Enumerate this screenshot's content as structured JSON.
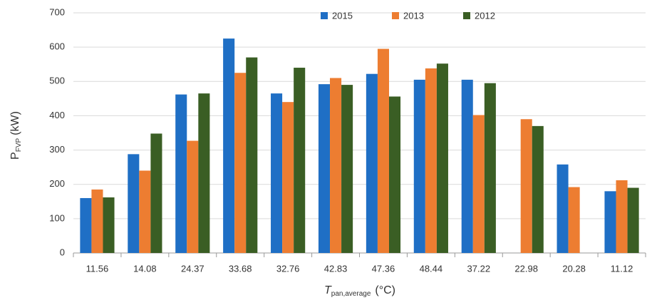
{
  "chart_data": {
    "type": "bar",
    "y_label": "P",
    "y_label_sub": "FVP",
    "y_label_unit": "(kW)",
    "x_label": "T",
    "x_label_sub": "pan,average",
    "x_label_unit": "(°C)",
    "categories": [
      "11.56",
      "14.08",
      "24.37",
      "33.68",
      "32.76",
      "42.83",
      "47.36",
      "48.44",
      "37.22",
      "22.98",
      "20.28",
      "11.12"
    ],
    "series": [
      {
        "name": "2015",
        "color": "#1f6fc5",
        "values": [
          160,
          288,
          462,
          625,
          465,
          492,
          522,
          505,
          505,
          null,
          258,
          180
        ]
      },
      {
        "name": "2013",
        "color": "#ed7d31",
        "values": [
          185,
          240,
          327,
          525,
          440,
          510,
          595,
          538,
          402,
          390,
          192,
          212
        ]
      },
      {
        "name": "2012",
        "color": "#3a5e24",
        "values": [
          162,
          348,
          465,
          570,
          540,
          490,
          456,
          552,
          495,
          370,
          null,
          190
        ]
      }
    ],
    "ylim": [
      0,
      700
    ],
    "yticks": [
      0,
      100,
      200,
      300,
      400,
      500,
      600,
      700
    ],
    "grid": true,
    "legend": "top"
  }
}
